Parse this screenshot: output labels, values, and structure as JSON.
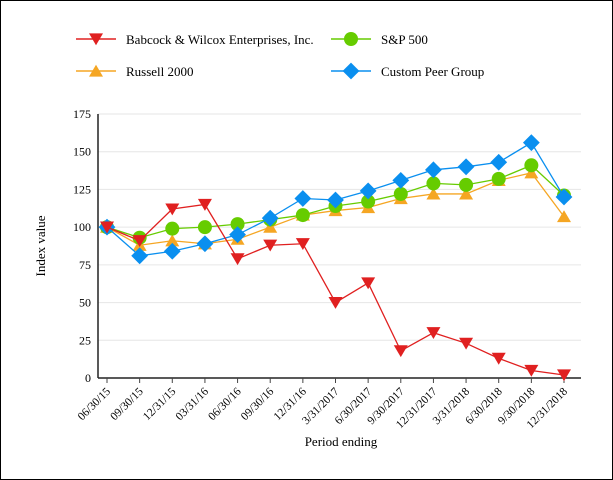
{
  "chart_data": {
    "type": "line",
    "title": "",
    "xlabel": "Period ending",
    "ylabel": "Index value",
    "ylim": [
      0,
      175
    ],
    "yticks": [
      0,
      25,
      50,
      75,
      100,
      125,
      150,
      175
    ],
    "grid": true,
    "legend_placement": "top",
    "categories": [
      "06/30/15",
      "09/30/15",
      "12/31/15",
      "03/31/16",
      "06/30/16",
      "09/30/16",
      "12/31/16",
      "3/31/2017",
      "6/30/2017",
      "9/30/2017",
      "12/31/2017",
      "3/31/2018",
      "6/30/2018",
      "9/30/2018",
      "12/31/2018"
    ],
    "series": [
      {
        "name": "Babcock & Wilcox Enterprises, Inc.",
        "color": "#e02020",
        "marker": "triangle-down",
        "values": [
          100,
          91,
          112,
          115,
          79,
          88,
          89,
          50,
          63,
          18,
          30,
          23,
          13,
          5,
          2
        ]
      },
      {
        "name": "S&P 500",
        "color": "#66cc00",
        "marker": "circle",
        "values": [
          100,
          93,
          99,
          100,
          102,
          105,
          108,
          114,
          117,
          122,
          129,
          128,
          132,
          141,
          121
        ]
      },
      {
        "name": "Russell 2000",
        "color": "#f5a623",
        "marker": "triangle-up",
        "values": [
          100,
          88,
          91,
          89,
          92,
          100,
          108,
          111,
          113,
          119,
          122,
          122,
          131,
          136,
          107
        ]
      },
      {
        "name": "Custom Peer Group",
        "color": "#0a8fef",
        "marker": "diamond",
        "values": [
          100,
          81,
          84,
          89,
          95,
          106,
          119,
          118,
          124,
          131,
          138,
          140,
          143,
          156,
          120
        ]
      }
    ]
  }
}
